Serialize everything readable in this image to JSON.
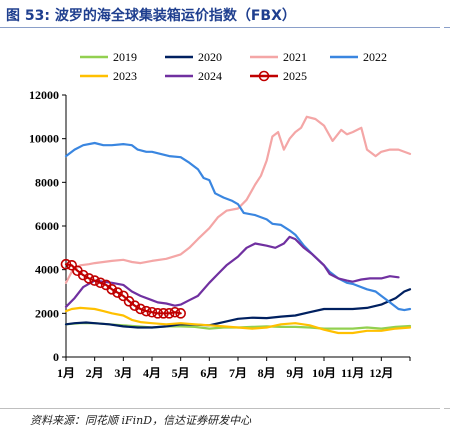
{
  "header": {
    "title": "图 53:  波罗的海全球集装箱运价指数（FBX）"
  },
  "footer": {
    "source": "资料来源：同花顺 iFinD，信达证券研发中心"
  },
  "colors": {
    "title": "#1f3f8f",
    "2019": "#92d050",
    "2020": "#002060",
    "2021": "#f4a6a6",
    "2022": "#3a86e0",
    "2023": "#ffc000",
    "2024": "#7030a0",
    "2025": "#c00000"
  },
  "chart_data": {
    "type": "line",
    "xlabel": "",
    "ylabel": "",
    "ylim": [
      0,
      12000
    ],
    "yticks": [
      0,
      2000,
      4000,
      6000,
      8000,
      10000,
      12000
    ],
    "xlim": [
      1,
      13
    ],
    "xticks": [
      "1月",
      "2月",
      "3月",
      "4月",
      "5月",
      "6月",
      "7月",
      "8月",
      "9月",
      "10月",
      "11月",
      "12月"
    ],
    "grid": false,
    "legend_position": "top",
    "series": [
      {
        "name": "2019",
        "color": "#92d050",
        "marker": false,
        "points": [
          [
            1.0,
            1500
          ],
          [
            1.5,
            1550
          ],
          [
            2.0,
            1550
          ],
          [
            2.5,
            1500
          ],
          [
            3.0,
            1450
          ],
          [
            3.5,
            1400
          ],
          [
            4.0,
            1350
          ],
          [
            4.5,
            1400
          ],
          [
            5.0,
            1400
          ],
          [
            5.5,
            1380
          ],
          [
            6.0,
            1300
          ],
          [
            6.5,
            1350
          ],
          [
            7.0,
            1350
          ],
          [
            7.5,
            1380
          ],
          [
            8.0,
            1400
          ],
          [
            8.5,
            1380
          ],
          [
            9.0,
            1380
          ],
          [
            9.5,
            1350
          ],
          [
            10.0,
            1300
          ],
          [
            10.5,
            1300
          ],
          [
            11.0,
            1300
          ],
          [
            11.5,
            1350
          ],
          [
            12.0,
            1300
          ],
          [
            12.5,
            1380
          ],
          [
            13.0,
            1420
          ]
        ]
      },
      {
        "name": "2020",
        "color": "#002060",
        "marker": false,
        "points": [
          [
            1.0,
            1500
          ],
          [
            1.3,
            1550
          ],
          [
            1.7,
            1580
          ],
          [
            2.0,
            1550
          ],
          [
            2.5,
            1500
          ],
          [
            3.0,
            1400
          ],
          [
            3.5,
            1350
          ],
          [
            4.0,
            1350
          ],
          [
            4.5,
            1400
          ],
          [
            5.0,
            1500
          ],
          [
            5.5,
            1480
          ],
          [
            6.0,
            1450
          ],
          [
            6.5,
            1600
          ],
          [
            7.0,
            1750
          ],
          [
            7.5,
            1800
          ],
          [
            8.0,
            1780
          ],
          [
            8.5,
            1850
          ],
          [
            9.0,
            1900
          ],
          [
            9.5,
            2050
          ],
          [
            10.0,
            2200
          ],
          [
            10.5,
            2200
          ],
          [
            11.0,
            2200
          ],
          [
            11.5,
            2250
          ],
          [
            12.0,
            2400
          ],
          [
            12.5,
            2700
          ],
          [
            12.8,
            3000
          ],
          [
            13.0,
            3100
          ]
        ]
      },
      {
        "name": "2021",
        "color": "#f4a6a6",
        "marker": false,
        "points": [
          [
            1.0,
            3400
          ],
          [
            1.2,
            3900
          ],
          [
            1.5,
            4200
          ],
          [
            1.8,
            4250
          ],
          [
            2.0,
            4300
          ],
          [
            2.3,
            4350
          ],
          [
            2.6,
            4400
          ],
          [
            3.0,
            4450
          ],
          [
            3.3,
            4350
          ],
          [
            3.6,
            4300
          ],
          [
            4.0,
            4400
          ],
          [
            4.5,
            4500
          ],
          [
            5.0,
            4700
          ],
          [
            5.3,
            5000
          ],
          [
            5.6,
            5400
          ],
          [
            6.0,
            5900
          ],
          [
            6.3,
            6400
          ],
          [
            6.6,
            6700
          ],
          [
            7.0,
            6800
          ],
          [
            7.3,
            7200
          ],
          [
            7.6,
            7900
          ],
          [
            7.8,
            8300
          ],
          [
            8.0,
            9000
          ],
          [
            8.2,
            10100
          ],
          [
            8.4,
            10300
          ],
          [
            8.6,
            9500
          ],
          [
            8.8,
            10000
          ],
          [
            9.0,
            10300
          ],
          [
            9.2,
            10500
          ],
          [
            9.4,
            11000
          ],
          [
            9.7,
            10900
          ],
          [
            10.0,
            10600
          ],
          [
            10.3,
            9900
          ],
          [
            10.6,
            10400
          ],
          [
            10.8,
            10200
          ],
          [
            11.0,
            10300
          ],
          [
            11.3,
            10500
          ],
          [
            11.5,
            9500
          ],
          [
            11.8,
            9200
          ],
          [
            12.0,
            9400
          ],
          [
            12.3,
            9500
          ],
          [
            12.6,
            9500
          ],
          [
            13.0,
            9300
          ]
        ]
      },
      {
        "name": "2022",
        "color": "#3a86e0",
        "marker": false,
        "points": [
          [
            1.0,
            9200
          ],
          [
            1.3,
            9500
          ],
          [
            1.6,
            9700
          ],
          [
            2.0,
            9800
          ],
          [
            2.3,
            9700
          ],
          [
            2.6,
            9700
          ],
          [
            3.0,
            9750
          ],
          [
            3.3,
            9700
          ],
          [
            3.5,
            9500
          ],
          [
            3.8,
            9400
          ],
          [
            4.0,
            9400
          ],
          [
            4.3,
            9300
          ],
          [
            4.6,
            9200
          ],
          [
            5.0,
            9150
          ],
          [
            5.3,
            8900
          ],
          [
            5.6,
            8600
          ],
          [
            5.8,
            8200
          ],
          [
            6.0,
            8100
          ],
          [
            6.2,
            7500
          ],
          [
            6.5,
            7300
          ],
          [
            6.8,
            7150
          ],
          [
            7.0,
            7000
          ],
          [
            7.2,
            6600
          ],
          [
            7.6,
            6500
          ],
          [
            8.0,
            6300
          ],
          [
            8.2,
            6100
          ],
          [
            8.5,
            6050
          ],
          [
            8.8,
            5800
          ],
          [
            9.0,
            5600
          ],
          [
            9.3,
            5100
          ],
          [
            9.6,
            4700
          ],
          [
            10.0,
            4200
          ],
          [
            10.2,
            3900
          ],
          [
            10.5,
            3600
          ],
          [
            10.8,
            3400
          ],
          [
            11.0,
            3350
          ],
          [
            11.5,
            3100
          ],
          [
            11.8,
            3000
          ],
          [
            12.0,
            2800
          ],
          [
            12.3,
            2500
          ],
          [
            12.6,
            2200
          ],
          [
            12.8,
            2150
          ],
          [
            13.0,
            2200
          ]
        ]
      },
      {
        "name": "2023",
        "color": "#ffc000",
        "marker": false,
        "points": [
          [
            1.0,
            2100
          ],
          [
            1.2,
            2200
          ],
          [
            1.5,
            2250
          ],
          [
            2.0,
            2200
          ],
          [
            2.3,
            2100
          ],
          [
            2.6,
            2000
          ],
          [
            3.0,
            1900
          ],
          [
            3.3,
            1700
          ],
          [
            3.6,
            1600
          ],
          [
            4.0,
            1550
          ],
          [
            4.5,
            1500
          ],
          [
            5.0,
            1550
          ],
          [
            5.5,
            1500
          ],
          [
            6.0,
            1450
          ],
          [
            6.5,
            1400
          ],
          [
            7.0,
            1350
          ],
          [
            7.5,
            1300
          ],
          [
            8.0,
            1350
          ],
          [
            8.5,
            1500
          ],
          [
            9.0,
            1550
          ],
          [
            9.5,
            1450
          ],
          [
            10.0,
            1250
          ],
          [
            10.5,
            1100
          ],
          [
            11.0,
            1100
          ],
          [
            11.5,
            1200
          ],
          [
            12.0,
            1200
          ],
          [
            12.5,
            1300
          ],
          [
            13.0,
            1350
          ]
        ]
      },
      {
        "name": "2024",
        "color": "#7030a0",
        "marker": false,
        "points": [
          [
            1.0,
            2300
          ],
          [
            1.3,
            2700
          ],
          [
            1.6,
            3200
          ],
          [
            2.0,
            3500
          ],
          [
            2.3,
            3450
          ],
          [
            2.6,
            3400
          ],
          [
            3.0,
            3300
          ],
          [
            3.3,
            3000
          ],
          [
            3.6,
            2800
          ],
          [
            4.0,
            2600
          ],
          [
            4.2,
            2500
          ],
          [
            4.5,
            2450
          ],
          [
            4.8,
            2350
          ],
          [
            5.0,
            2400
          ],
          [
            5.3,
            2600
          ],
          [
            5.6,
            2800
          ],
          [
            6.0,
            3400
          ],
          [
            6.3,
            3800
          ],
          [
            6.6,
            4200
          ],
          [
            7.0,
            4600
          ],
          [
            7.3,
            5000
          ],
          [
            7.6,
            5200
          ],
          [
            8.0,
            5100
          ],
          [
            8.3,
            5000
          ],
          [
            8.6,
            5200
          ],
          [
            8.8,
            5500
          ],
          [
            9.0,
            5400
          ],
          [
            9.3,
            5000
          ],
          [
            9.6,
            4700
          ],
          [
            10.0,
            4200
          ],
          [
            10.2,
            3800
          ],
          [
            10.5,
            3600
          ],
          [
            10.8,
            3500
          ],
          [
            11.0,
            3450
          ],
          [
            11.3,
            3550
          ],
          [
            11.6,
            3600
          ],
          [
            12.0,
            3600
          ],
          [
            12.3,
            3700
          ],
          [
            12.6,
            3650
          ]
        ]
      },
      {
        "name": "2025",
        "color": "#c00000",
        "marker": true,
        "points": [
          [
            1.0,
            4250
          ],
          [
            1.2,
            4200
          ],
          [
            1.4,
            3950
          ],
          [
            1.6,
            3750
          ],
          [
            1.8,
            3600
          ],
          [
            2.0,
            3500
          ],
          [
            2.2,
            3400
          ],
          [
            2.4,
            3300
          ],
          [
            2.6,
            3100
          ],
          [
            2.8,
            2950
          ],
          [
            3.0,
            2800
          ],
          [
            3.2,
            2550
          ],
          [
            3.4,
            2350
          ],
          [
            3.6,
            2200
          ],
          [
            3.8,
            2100
          ],
          [
            4.0,
            2050
          ],
          [
            4.2,
            2000
          ],
          [
            4.4,
            2000
          ],
          [
            4.6,
            2000
          ],
          [
            4.8,
            2050
          ],
          [
            5.0,
            2000
          ]
        ]
      }
    ]
  }
}
